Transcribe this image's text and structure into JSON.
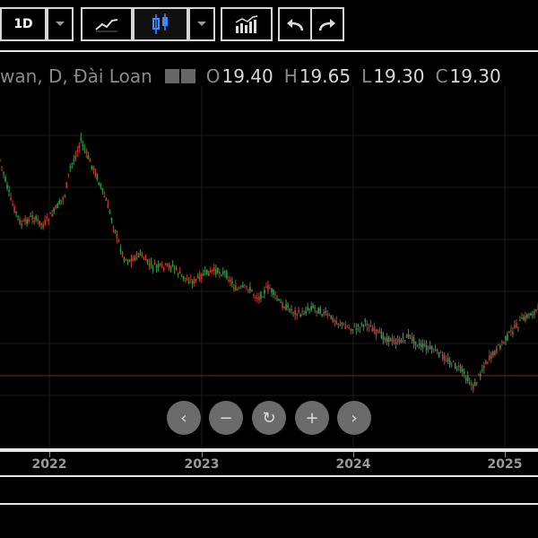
{
  "toolbar": {
    "interval": "1D",
    "icons": [
      "chevron-down-icon",
      "line-chart-icon",
      "candlestick-icon",
      "chevron-down-icon",
      "indicators-icon",
      "undo-icon",
      "redo-icon"
    ]
  },
  "legend": {
    "symbol": "wan, D, Đài Loan",
    "open_label": "O",
    "open": "19.40",
    "high_label": "H",
    "high": "19.65",
    "low_label": "L",
    "low": "19.30",
    "close_label": "C",
    "close": "19.30"
  },
  "colors": {
    "up": "#26a69a",
    "down": "#ef5350",
    "background": "#000000",
    "grid": "#1c1c1c"
  },
  "xaxis": {
    "labels": [
      "2022",
      "2023",
      "2024",
      "2025"
    ]
  },
  "nav_controls": [
    "scroll-left-icon",
    "zoom-out-icon",
    "reset-icon",
    "zoom-in-icon",
    "scroll-right-icon"
  ],
  "chart_data": {
    "type": "candlestick",
    "interval": "1D",
    "x_labels": [
      "2022",
      "2023",
      "2024",
      "2025"
    ],
    "last": {
      "open": 19.4,
      "high": 19.65,
      "low": 19.3,
      "close": 19.3
    },
    "path_points_relative": [
      [
        0.0,
        0.8
      ],
      [
        0.02,
        0.55
      ],
      [
        0.04,
        0.4
      ],
      [
        0.06,
        0.45
      ],
      [
        0.08,
        0.4
      ],
      [
        0.1,
        0.48
      ],
      [
        0.12,
        0.58
      ],
      [
        0.13,
        0.75
      ],
      [
        0.14,
        0.82
      ],
      [
        0.15,
        0.92
      ],
      [
        0.16,
        0.84
      ],
      [
        0.18,
        0.7
      ],
      [
        0.2,
        0.52
      ],
      [
        0.22,
        0.3
      ],
      [
        0.23,
        0.2
      ],
      [
        0.24,
        0.18
      ],
      [
        0.26,
        0.22
      ],
      [
        0.28,
        0.15
      ],
      [
        0.3,
        0.14
      ],
      [
        0.32,
        0.15
      ],
      [
        0.34,
        0.08
      ],
      [
        0.36,
        0.05
      ],
      [
        0.38,
        0.1
      ],
      [
        0.4,
        0.12
      ],
      [
        0.42,
        0.1
      ],
      [
        0.44,
        0.0
      ],
      [
        0.46,
        0.02
      ],
      [
        0.48,
        -0.05
      ],
      [
        0.5,
        0.02
      ],
      [
        0.52,
        -0.08
      ],
      [
        0.54,
        -0.12
      ],
      [
        0.56,
        -0.15
      ],
      [
        0.58,
        -0.1
      ],
      [
        0.6,
        -0.14
      ],
      [
        0.62,
        -0.18
      ],
      [
        0.64,
        -0.22
      ],
      [
        0.66,
        -0.24
      ],
      [
        0.68,
        -0.2
      ],
      [
        0.7,
        -0.26
      ],
      [
        0.72,
        -0.3
      ],
      [
        0.74,
        -0.32
      ],
      [
        0.76,
        -0.28
      ],
      [
        0.78,
        -0.34
      ],
      [
        0.8,
        -0.36
      ],
      [
        0.82,
        -0.4
      ],
      [
        0.84,
        -0.45
      ],
      [
        0.86,
        -0.5
      ],
      [
        0.88,
        -0.6
      ],
      [
        0.9,
        -0.46
      ],
      [
        0.92,
        -0.38
      ],
      [
        0.94,
        -0.3
      ],
      [
        0.96,
        -0.22
      ],
      [
        0.98,
        -0.16
      ],
      [
        1.0,
        -0.12
      ]
    ]
  }
}
